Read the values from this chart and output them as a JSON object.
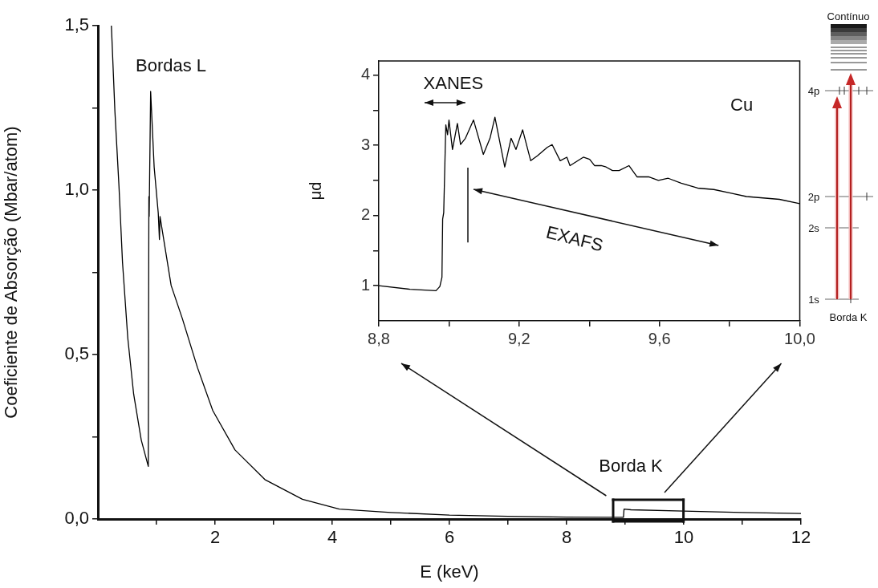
{
  "chart_data": [
    {
      "type": "line",
      "xlabel": "E (keV)",
      "ylabel": "Coeficiente de Absorção (Mbar/atom)",
      "xlim": [
        0,
        12
      ],
      "ylim": [
        0,
        1.5
      ],
      "xticks": [
        {
          "value": 1,
          "label": null
        },
        2,
        {
          "value": 3,
          "label": null
        },
        4,
        {
          "value": 5,
          "label": null
        },
        6,
        {
          "value": 7,
          "label": null
        },
        8,
        {
          "value": 9,
          "label": null
        },
        10,
        {
          "value": 11,
          "label": null
        },
        12
      ],
      "yticks": [
        {
          "value": 0,
          "label": "0,0"
        },
        {
          "value": 0.25,
          "label": null
        },
        {
          "value": 0.5,
          "label": "0,5"
        },
        {
          "value": 0.75,
          "label": null
        },
        {
          "value": 1,
          "label": "1,0"
        },
        {
          "value": 1.25,
          "label": null
        },
        {
          "value": 1.5,
          "label": "1,5"
        }
      ],
      "annotations": [
        "Bordas L",
        "Borda K"
      ],
      "series": [
        {
          "color": "#000000",
          "x": [
            0.23,
            0.29,
            0.36,
            0.42,
            0.51,
            0.61,
            0.74,
            0.86,
            0.87,
            0.875,
            0.9,
            0.96,
            1.03,
            1.05,
            1.06,
            1.25,
            1.44,
            1.7,
            1.96,
            2.34,
            2.85,
            3.49,
            4.12,
            5,
            6,
            7,
            8,
            8.97,
            8.98,
            9.1,
            10,
            11,
            12
          ],
          "values": [
            1.5,
            1.24,
            1.01,
            0.78,
            0.55,
            0.38,
            0.24,
            0.16,
            0.98,
            0.92,
            1.3,
            1.07,
            0.93,
            0.85,
            0.92,
            0.71,
            0.61,
            0.46,
            0.33,
            0.21,
            0.12,
            0.06,
            0.03,
            0.02,
            0.012,
            0.008,
            0.006,
            0.005,
            0.03,
            0.028,
            0.024,
            0.02,
            0.017
          ]
        }
      ]
    },
    {
      "type": "line",
      "ylabel": "μd",
      "xlim": [
        8.8,
        10
      ],
      "ylim": [
        0.5,
        4.2
      ],
      "xticks": [
        {
          "value": 8.8,
          "label": "8,8"
        },
        {
          "value": 9,
          "label": null
        },
        {
          "value": 9.2,
          "label": "9,2"
        },
        {
          "value": 9.4,
          "label": null
        },
        {
          "value": 9.6,
          "label": "9,6"
        },
        {
          "value": 9.8,
          "label": null
        },
        {
          "value": 10,
          "label": "10,0"
        }
      ],
      "yticks": [
        1,
        {
          "value": 1.5,
          "label": null
        },
        2,
        {
          "value": 2.5,
          "label": null
        },
        3,
        {
          "value": 3.5,
          "label": null
        },
        4
      ],
      "annotations": [
        "XANES",
        "Cu",
        "EXAFS"
      ],
      "series": [
        {
          "color": "#000000",
          "x": [
            8.8,
            8.889,
            8.963,
            8.974,
            8.98,
            8.982,
            8.985,
            8.991,
            8.996,
            9.0,
            9.01,
            9.024,
            9.033,
            9.047,
            9.07,
            9.098,
            9.117,
            9.131,
            9.159,
            9.177,
            9.191,
            9.21,
            9.233,
            9.252,
            9.28,
            9.294,
            9.317,
            9.336,
            9.345,
            9.383,
            9.401,
            9.415,
            9.434,
            9.448,
            9.466,
            9.485,
            9.513,
            9.536,
            9.569,
            9.597,
            9.625,
            9.662,
            9.709,
            9.755,
            9.802,
            9.848,
            9.895,
            9.942,
            10.0
          ],
          "values": [
            1.0,
            0.95,
            0.93,
            0.99,
            1.12,
            1.95,
            2.04,
            3.29,
            3.15,
            3.36,
            2.94,
            3.31,
            3.01,
            3.1,
            3.36,
            2.87,
            3.1,
            3.4,
            2.69,
            3.1,
            2.94,
            3.22,
            2.78,
            2.85,
            2.97,
            3.01,
            2.78,
            2.83,
            2.71,
            2.83,
            2.8,
            2.71,
            2.71,
            2.69,
            2.64,
            2.64,
            2.71,
            2.55,
            2.55,
            2.5,
            2.53,
            2.46,
            2.39,
            2.37,
            2.32,
            2.27,
            2.25,
            2.23,
            2.17
          ]
        }
      ]
    },
    {
      "type": "other",
      "annotations": [
        "Contínuo",
        "4p",
        "2p",
        "2s",
        "1s",
        "Borda K"
      ]
    }
  ]
}
